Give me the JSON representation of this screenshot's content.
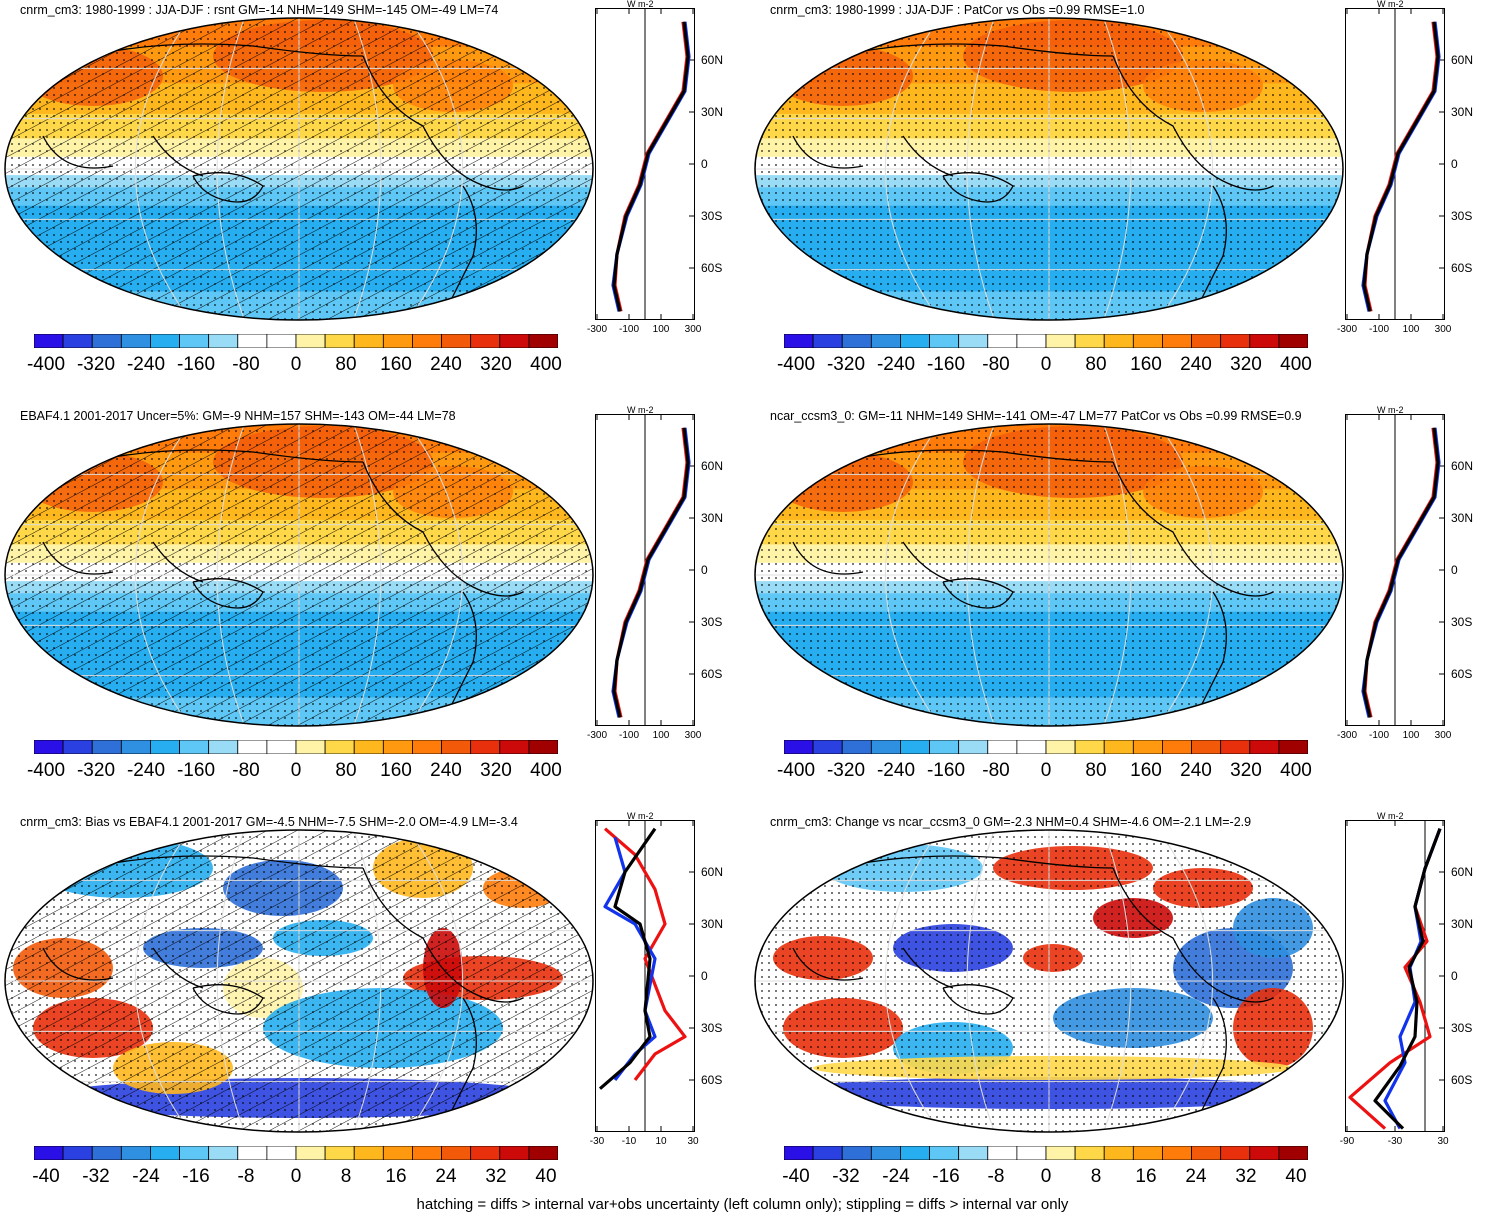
{
  "panels": [
    {
      "title": "cnrm_cm3: 1980-1999 : JJA-DJF : rsnt GM=-14 NHM=149 SHM=-145 OM=-49 LM=74",
      "style": "mean",
      "hatching": true,
      "colorbar_labels": [
        "-400",
        "-320",
        "-240",
        "-160",
        "-80",
        "0",
        "80",
        "160",
        "240",
        "320",
        "400"
      ],
      "zonal_units": "W m-2",
      "zonal_x_labels": [
        "-300",
        "-100",
        "100",
        "300"
      ]
    },
    {
      "title": "cnrm_cm3: 1980-1999 : JJA-DJF : PatCor vs Obs =0.99 RMSE=1.0",
      "style": "mean",
      "hatching": false,
      "colorbar_labels": [
        "-400",
        "-320",
        "-240",
        "-160",
        "-80",
        "0",
        "80",
        "160",
        "240",
        "320",
        "400"
      ],
      "zonal_units": "W m-2",
      "zonal_x_labels": [
        "-300",
        "-100",
        "100",
        "300"
      ]
    },
    {
      "title": "EBAF4.1 2001-2017 Uncer=5%: GM=-9 NHM=157 SHM=-143 OM=-44 LM=78",
      "style": "mean",
      "hatching": true,
      "colorbar_labels": [
        "-400",
        "-320",
        "-240",
        "-160",
        "-80",
        "0",
        "80",
        "160",
        "240",
        "320",
        "400"
      ],
      "zonal_units": "W m-2",
      "zonal_x_labels": [
        "-300",
        "-100",
        "100",
        "300"
      ]
    },
    {
      "title": "ncar_ccsm3_0: GM=-11 NHM=149 SHM=-141 OM=-47 LM=77 PatCor vs Obs =0.99 RMSE=0.9",
      "style": "mean",
      "hatching": false,
      "colorbar_labels": [
        "-400",
        "-320",
        "-240",
        "-160",
        "-80",
        "0",
        "80",
        "160",
        "240",
        "320",
        "400"
      ],
      "zonal_units": "W m-2",
      "zonal_x_labels": [
        "-300",
        "-100",
        "100",
        "300"
      ]
    },
    {
      "title": "cnrm_cm3: Bias vs EBAF4.1 2001-2017 GM=-4.5 NHM=-7.5 SHM=-2.0 OM=-4.9 LM=-3.4",
      "style": "diff",
      "hatching": true,
      "colorbar_labels": [
        "-40",
        "-32",
        "-24",
        "-16",
        "-8",
        "0",
        "8",
        "16",
        "24",
        "32",
        "40"
      ],
      "zonal_units": "W m-2",
      "zonal_x_labels": [
        "-30",
        "-10",
        "10",
        "30"
      ]
    },
    {
      "title": "cnrm_cm3: Change vs ncar_ccsm3_0 GM=-2.3 NHM=0.4 SHM=-4.6 OM=-2.1 LM=-2.9",
      "style": "diff",
      "hatching": false,
      "colorbar_labels": [
        "-40",
        "-32",
        "-24",
        "-16",
        "-8",
        "0",
        "8",
        "16",
        "24",
        "32",
        "40"
      ],
      "zonal_units": "W m-2",
      "zonal_x_labels": [
        "-90",
        "-30",
        "30"
      ]
    }
  ],
  "lat_labels": [
    "60N",
    "30N",
    "0",
    "30S",
    "60S"
  ],
  "colors": {
    "palette": [
      "#2a0fe6",
      "#2a40e0",
      "#2f6fd8",
      "#2f8fe0",
      "#27aef0",
      "#5ec7f5",
      "#9adcf6",
      "#ffffff",
      "#ffffff",
      "#fff3a8",
      "#ffd84a",
      "#ffb71e",
      "#ff9a10",
      "#ff7c0a",
      "#f25a0a",
      "#e8300c",
      "#cc0a0a",
      "#a00000"
    ],
    "line_red": "#ee1111",
    "line_blue": "#1133ee",
    "line_black": "#000000"
  },
  "footnote": "hatching = diffs > internal var+obs uncertainty (left column only); stippling = diffs > internal var only"
}
